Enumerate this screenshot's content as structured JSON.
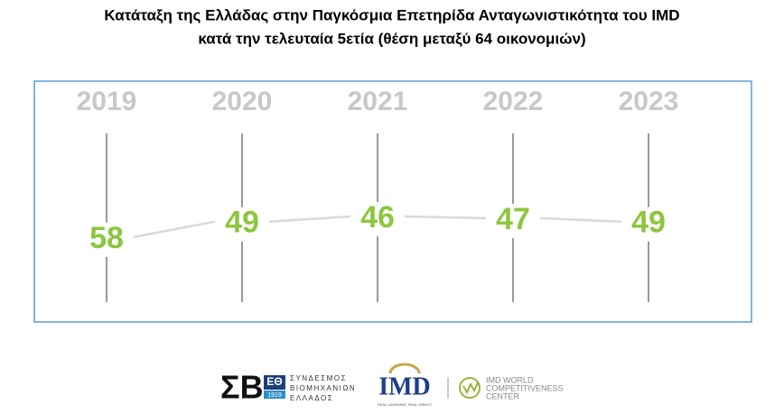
{
  "chart_data": {
    "type": "line",
    "title": [
      "Κατάταξη της Ελλάδας στην Παγκόσμια Επετηρίδα Ανταγωνιστικότητα του IMD",
      "κατά την τελευταία 5ετία (θέση μεταξύ 64 οικονομιών)"
    ],
    "categories": [
      "2019",
      "2020",
      "2021",
      "2022",
      "2023"
    ],
    "values": [
      58,
      49,
      46,
      47,
      49
    ],
    "color": "#8dc63f"
  },
  "footer": {
    "sbe_letters": "ΣΒ",
    "sbe_badge": "ΕΘ",
    "sbe_year": "1919",
    "sbe_name": [
      "ΣΥΝΔΕΣΜΟΣ",
      "ΒΙΟΜΗΧΑΝΙΩΝ",
      "ΕΛΛΑΔΟΣ"
    ],
    "imd": "IMD",
    "imd_tagline": "REAL LEARNING. REAL IMPACT",
    "wcc": [
      "IMD WORLD",
      "COMPETITIVENESS",
      "CENTER"
    ]
  }
}
